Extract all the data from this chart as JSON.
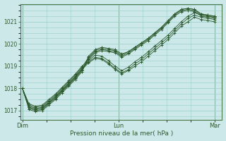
{
  "xlabel": "Pression niveau de la mer( hPa )",
  "bg_color": "#cce8e8",
  "grid_color": "#99cccc",
  "line_color": "#2d5a2d",
  "x_tick_labels": [
    "Dim",
    "Lun",
    "Mar"
  ],
  "x_tick_positions": [
    0,
    1,
    2
  ],
  "ylim": [
    1016.6,
    1021.8
  ],
  "yticks": [
    1017,
    1018,
    1019,
    1020,
    1021
  ],
  "series": [
    [
      1018.0,
      1017.15,
      1017.05,
      1017.1,
      1017.35,
      1017.6,
      1017.9,
      1018.2,
      1018.5,
      1018.85,
      1019.15,
      1019.35,
      1019.3,
      1019.1,
      1018.85,
      1018.65,
      1018.8,
      1019.0,
      1019.2,
      1019.45,
      1019.7,
      1019.95,
      1020.2,
      1020.5,
      1020.8,
      1021.0,
      1021.2,
      1021.1,
      1021.05,
      1021.0
    ],
    [
      1018.0,
      1017.2,
      1017.1,
      1017.15,
      1017.4,
      1017.65,
      1017.95,
      1018.25,
      1018.55,
      1018.9,
      1019.2,
      1019.4,
      1019.35,
      1019.15,
      1018.9,
      1018.7,
      1018.85,
      1019.1,
      1019.3,
      1019.55,
      1019.8,
      1020.05,
      1020.3,
      1020.6,
      1020.9,
      1021.15,
      1021.3,
      1021.2,
      1021.15,
      1021.1
    ],
    [
      1018.0,
      1017.3,
      1017.2,
      1017.25,
      1017.5,
      1017.75,
      1018.05,
      1018.35,
      1018.65,
      1019.0,
      1019.25,
      1019.5,
      1019.45,
      1019.25,
      1019.0,
      1018.8,
      1018.95,
      1019.2,
      1019.4,
      1019.65,
      1019.9,
      1020.15,
      1020.4,
      1020.7,
      1021.0,
      1021.25,
      1021.4,
      1021.3,
      1021.25,
      1021.2
    ],
    [
      1018.0,
      1017.05,
      1016.95,
      1017.0,
      1017.25,
      1017.5,
      1017.8,
      1018.1,
      1018.4,
      1018.75,
      1019.45,
      1019.75,
      1019.85,
      1019.8,
      1019.75,
      1019.55,
      1019.65,
      1019.85,
      1020.05,
      1020.25,
      1020.5,
      1020.75,
      1021.05,
      1021.35,
      1021.55,
      1021.6,
      1021.55,
      1021.35,
      1021.3,
      1021.25
    ],
    [
      1018.0,
      1017.1,
      1017.0,
      1017.05,
      1017.3,
      1017.55,
      1017.85,
      1018.15,
      1018.45,
      1018.8,
      1019.3,
      1019.6,
      1019.7,
      1019.65,
      1019.6,
      1019.4,
      1019.55,
      1019.75,
      1019.95,
      1020.15,
      1020.4,
      1020.65,
      1020.95,
      1021.25,
      1021.45,
      1021.5,
      1021.45,
      1021.25,
      1021.2,
      1021.15
    ],
    [
      1018.0,
      1017.15,
      1017.05,
      1017.1,
      1017.35,
      1017.6,
      1017.9,
      1018.2,
      1018.5,
      1018.85,
      1019.35,
      1019.65,
      1019.75,
      1019.7,
      1019.65,
      1019.45,
      1019.6,
      1019.8,
      1020.0,
      1020.2,
      1020.45,
      1020.7,
      1021.0,
      1021.3,
      1021.5,
      1021.55,
      1021.5,
      1021.3,
      1021.25,
      1021.2
    ],
    [
      1018.0,
      1017.25,
      1017.15,
      1017.2,
      1017.45,
      1017.7,
      1018.0,
      1018.3,
      1018.6,
      1018.95,
      1019.4,
      1019.7,
      1019.8,
      1019.75,
      1019.7,
      1019.5,
      1019.65,
      1019.85,
      1020.05,
      1020.25,
      1020.5,
      1020.75,
      1021.05,
      1021.35,
      1021.55,
      1021.6,
      1021.55,
      1021.35,
      1021.3,
      1021.25
    ]
  ],
  "n_points": 30
}
